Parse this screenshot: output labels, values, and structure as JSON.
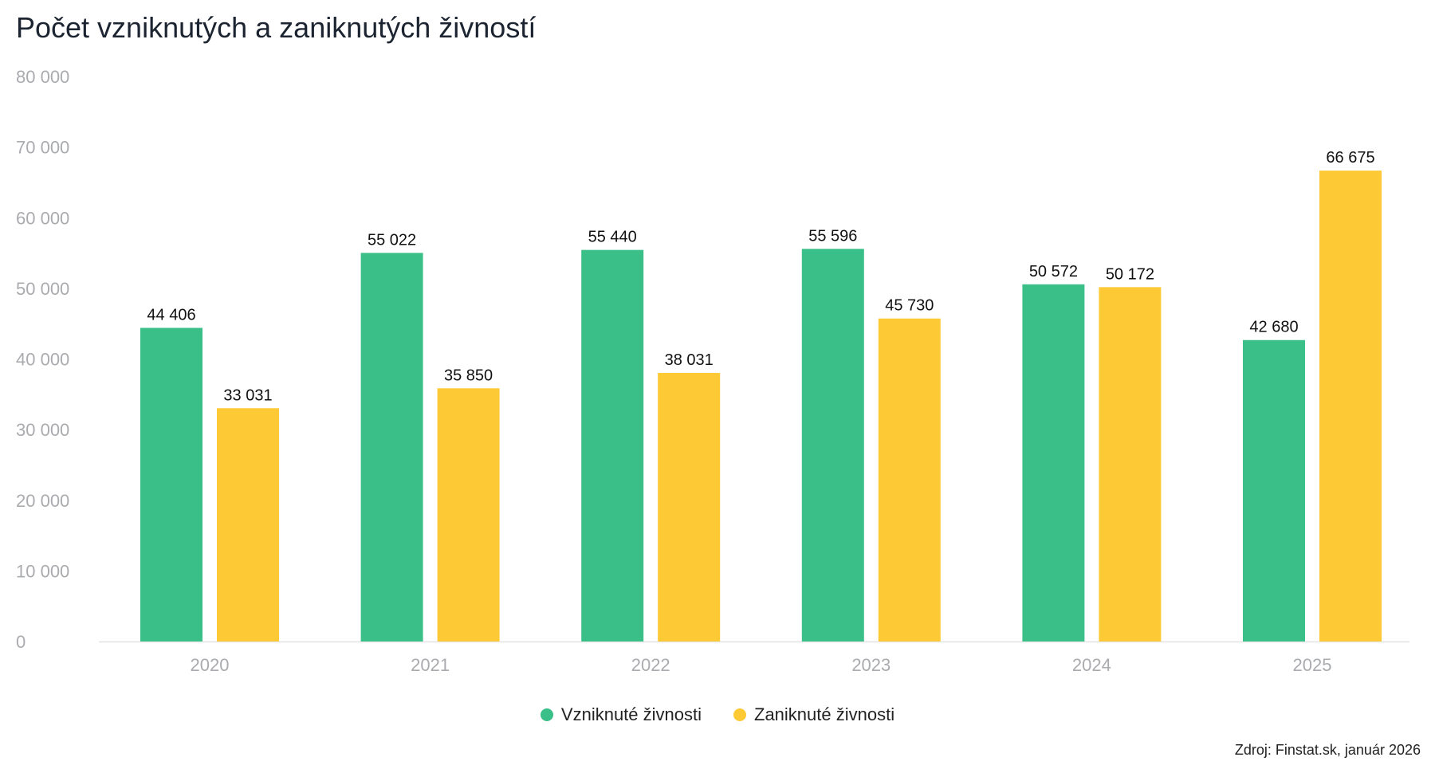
{
  "chart_data": {
    "type": "bar",
    "title": "Počet vzniknutých a zaniknutých živností",
    "categories": [
      "2020",
      "2021",
      "2022",
      "2023",
      "2024",
      "2025"
    ],
    "series": [
      {
        "name": "Vzniknuté živnosti",
        "color": "#3bbf88",
        "values": [
          44406,
          55022,
          55440,
          55596,
          50572,
          42680
        ],
        "labels": [
          "44 406",
          "55 022",
          "55 440",
          "55 596",
          "50 572",
          "42 680"
        ]
      },
      {
        "name": "Zaniknuté živnosti",
        "color": "#fdca35",
        "values": [
          33031,
          35850,
          38031,
          45730,
          50172,
          66675
        ],
        "labels": [
          "33 031",
          "35 850",
          "38 031",
          "45 730",
          "50 172",
          "66 675"
        ]
      }
    ],
    "ylim": [
      0,
      80000
    ],
    "yticks": [
      "0",
      "10 000",
      "20 000",
      "30 000",
      "40 000",
      "50 000",
      "60 000",
      "70 000",
      "80 000"
    ],
    "grid": false,
    "legend": "bottom-center",
    "xlabel": "",
    "ylabel": ""
  },
  "source": "Zdroj: Finstat.sk, január 2026"
}
